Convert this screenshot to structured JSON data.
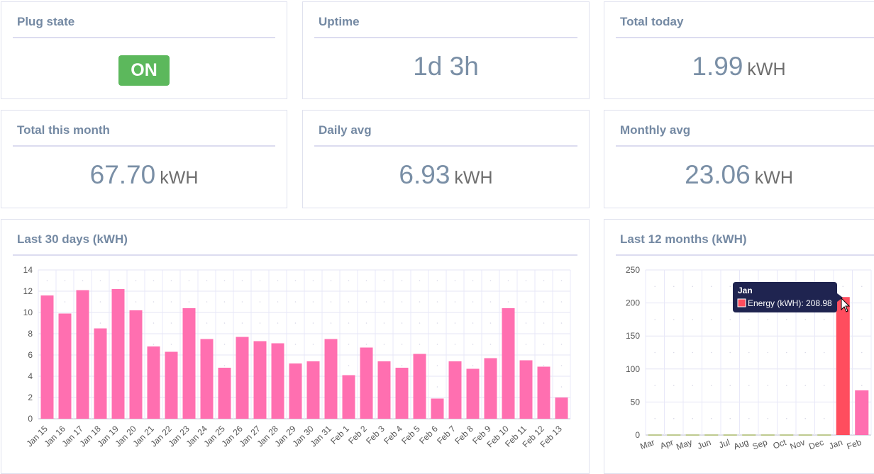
{
  "cards": {
    "plug_state": {
      "title": "Plug state",
      "value": "ON"
    },
    "uptime": {
      "title": "Uptime",
      "value": "1d 3h"
    },
    "total_today": {
      "title": "Total today",
      "value": "1.99",
      "unit": "kWH"
    },
    "total_month": {
      "title": "Total this month",
      "value": "67.70",
      "unit": "kWH"
    },
    "daily_avg": {
      "title": "Daily avg",
      "value": "6.93",
      "unit": "kWH"
    },
    "monthly_avg": {
      "title": "Monthly avg",
      "value": "23.06",
      "unit": "kWH"
    }
  },
  "colors": {
    "on_badge": "#5cb85c",
    "bar": "#ff6fb0",
    "bar_highlight": "#ff4d5e",
    "tooltip_bg": "#1f2450"
  },
  "chart_data": [
    {
      "type": "bar",
      "title": "Last 30 days (kWH)",
      "categories": [
        "Jan 15",
        "Jan 16",
        "Jan 17",
        "Jan 18",
        "Jan 19",
        "Jan 20",
        "Jan 21",
        "Jan 22",
        "Jan 23",
        "Jan 24",
        "Jan 25",
        "Jan 26",
        "Jan 27",
        "Jan 28",
        "Jan 29",
        "Jan 30",
        "Jan 31",
        "Feb 1",
        "Feb 2",
        "Feb 3",
        "Feb 4",
        "Feb 5",
        "Feb 6",
        "Feb 7",
        "Feb 8",
        "Feb 9",
        "Feb 10",
        "Feb 11",
        "Feb 12",
        "Feb 13"
      ],
      "values": [
        11.6,
        9.9,
        12.1,
        8.5,
        12.2,
        10.2,
        6.8,
        6.3,
        10.4,
        7.5,
        4.8,
        7.7,
        7.3,
        7.1,
        5.2,
        5.4,
        7.5,
        4.1,
        6.7,
        5.4,
        4.8,
        6.1,
        1.9,
        5.4,
        4.7,
        5.7,
        10.4,
        5.5,
        4.9,
        2.0
      ],
      "ylim": [
        0,
        14
      ],
      "yticks": [
        0,
        2,
        4,
        6,
        8,
        10,
        12,
        14
      ],
      "grid": true
    },
    {
      "type": "bar",
      "title": "Last 12 months (kWH)",
      "categories": [
        "Mar",
        "Apr",
        "May",
        "Jun",
        "Jul",
        "Aug",
        "Sep",
        "Oct",
        "Nov",
        "Dec",
        "Jan",
        "Feb"
      ],
      "values": [
        0,
        0,
        0,
        0,
        0,
        0,
        0,
        0,
        0,
        0,
        208.98,
        67.7
      ],
      "ylim": [
        0,
        250
      ],
      "yticks": [
        0,
        50,
        100,
        150,
        200,
        250
      ],
      "grid": true,
      "tooltip": {
        "title": "Jan",
        "label": "Energy (kWH): 208.98"
      }
    }
  ]
}
